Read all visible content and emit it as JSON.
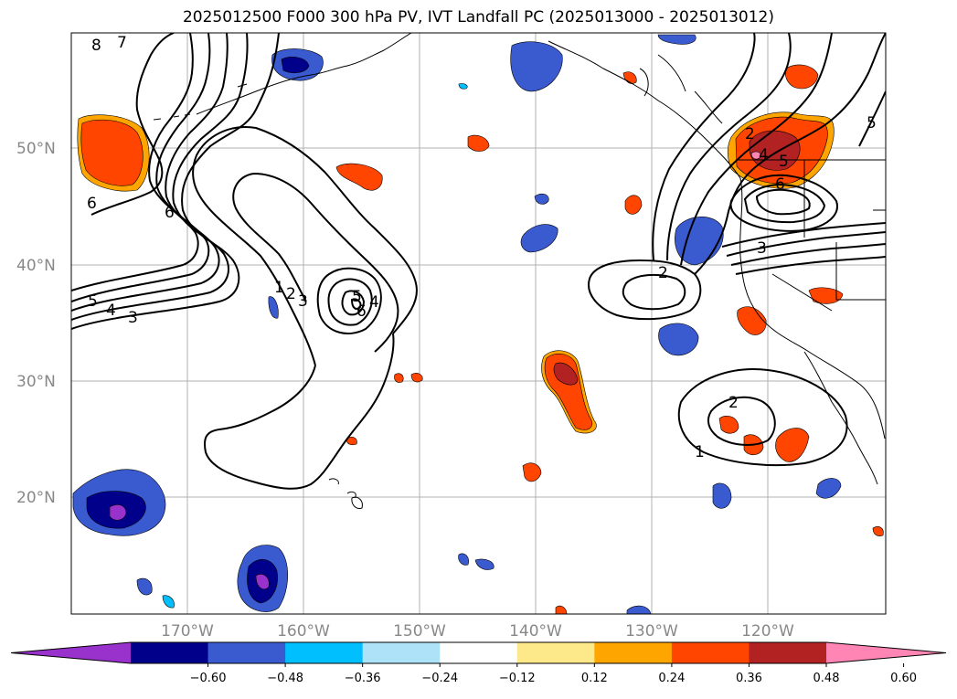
{
  "title": "2025012500 F000 300 hPa PV, IVT Landfall PC (2025013000 - 2025013012)",
  "lat_labels": [
    "50°N",
    "40°N",
    "30°N",
    "20°N"
  ],
  "lon_labels": [
    "170°W",
    "160°W",
    "150°W",
    "140°W",
    "130°W",
    "120°W"
  ],
  "colorbar": {
    "tick_labels": [
      "−0.60",
      "−0.48",
      "−0.36",
      "−0.24",
      "−0.12",
      "0.12",
      "0.24",
      "0.36",
      "0.48",
      "0.60"
    ],
    "colors": [
      "#9932cc",
      "#00008b",
      "#3a5bd0",
      "#00bfff",
      "#aee2f8",
      "#ffffff",
      "#fde98a",
      "#ffa500",
      "#ff4500",
      "#b22222",
      "#ff85b4"
    ]
  },
  "contour_labels": {
    "c8": "8",
    "c7": "7",
    "c6a": "6",
    "c6b": "6",
    "c5": "5",
    "c4": "4",
    "c3": "3",
    "c1": "1",
    "c2": "2",
    "c3b": "3",
    "c5b": "5",
    "c4b": "4",
    "c6c": "6",
    "c2b": "2",
    "c2c": "2",
    "c1b": "1",
    "c3c": "3",
    "c5c": "5",
    "c6d": "6",
    "c2d": "2",
    "c4c": "4",
    "c5d": "5"
  }
}
